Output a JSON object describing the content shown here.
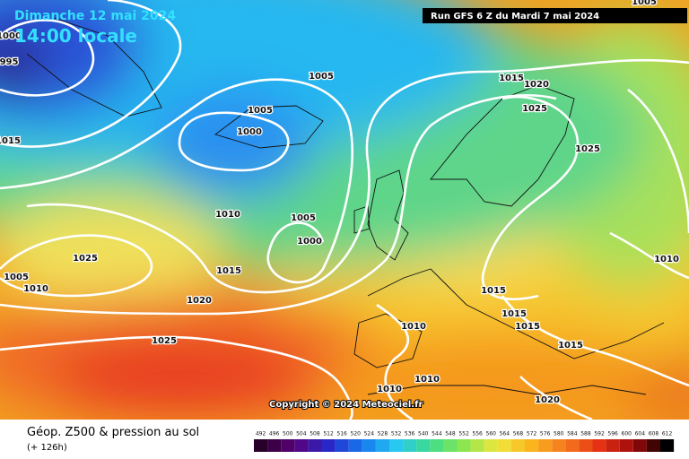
{
  "header": {
    "date": "Dimanche 12 mai 2024",
    "time": "14:00 locale",
    "run": "Run GFS 6 Z du Mardi 7 mai 2024"
  },
  "isobar_labels": [
    "1000",
    "995",
    "1015",
    "1005",
    "1005",
    "1000",
    "1010",
    "1005",
    "1000",
    "1025",
    "1015",
    "1010",
    "1005",
    "1020",
    "1025",
    "1015",
    "1020",
    "1025",
    "1025",
    "1010",
    "1015",
    "1015",
    "1015",
    "1015",
    "1010",
    "1010",
    "1010",
    "1020",
    "1005"
  ],
  "copyright": "Copyright © 2024 Meteociel.fr",
  "footer": {
    "title": "Géop. Z500 & pression au sol",
    "lead": "(+ 126h)"
  },
  "legend": {
    "values": [
      492,
      496,
      500,
      504,
      508,
      512,
      516,
      520,
      524,
      528,
      532,
      536,
      540,
      544,
      548,
      552,
      556,
      560,
      564,
      568,
      572,
      576,
      580,
      584,
      588,
      592,
      596,
      600,
      604,
      608,
      612
    ]
  }
}
